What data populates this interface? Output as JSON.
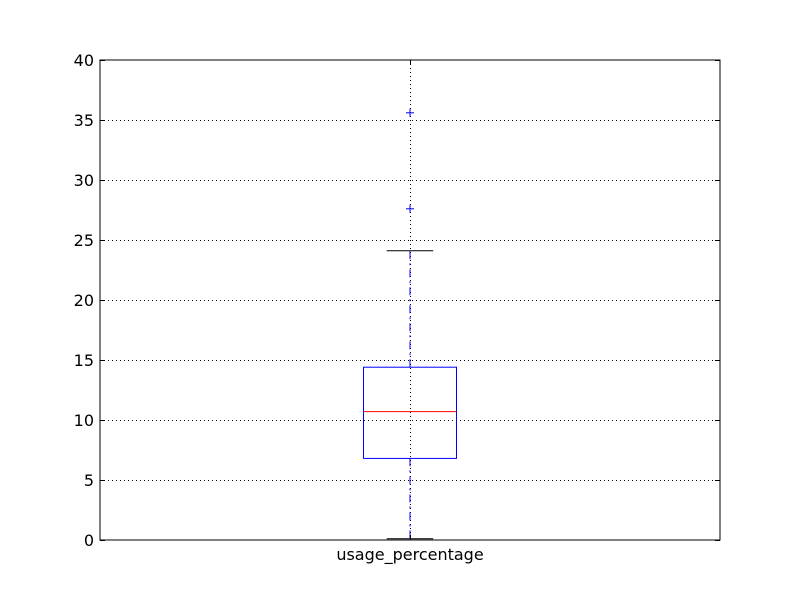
{
  "chart_data": {
    "type": "box",
    "categories": [
      "usage_percentage"
    ],
    "boxes": [
      {
        "name": "usage_percentage",
        "whisker_low": 0.1,
        "q1": 6.8,
        "median": 10.7,
        "q3": 14.4,
        "whisker_high": 24.1,
        "outliers": [
          27.6,
          35.6
        ]
      }
    ],
    "title": "",
    "xlabel": "",
    "ylabel": "",
    "ylim": [
      0,
      40
    ],
    "yticks": [
      0,
      5,
      10,
      15,
      20,
      25,
      30,
      35,
      40
    ],
    "ytick_labels": [
      "0",
      "5",
      "10",
      "15",
      "20",
      "25",
      "30",
      "35",
      "40"
    ],
    "grid": true,
    "colors": {
      "box": "#0000ff",
      "median": "#ff0000",
      "whisker": "#0000ff",
      "cap": "#000000",
      "outlier": "#0000ff",
      "grid": "#000000"
    }
  }
}
